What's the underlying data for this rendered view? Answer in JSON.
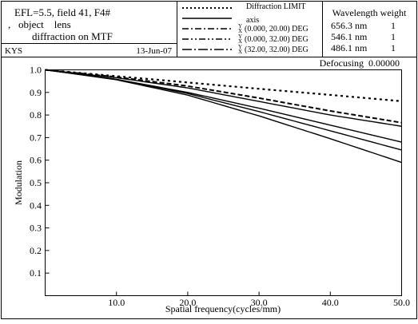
{
  "header": {
    "title_lines": [
      "EFL=5.5, field 41, F4#",
      ",   object    lens",
      "diffraction on MTF"
    ],
    "author": "KYS",
    "date": "13-Jun-07",
    "legend_entries": [
      {
        "sub": "",
        "text": "Diffraction LIMIT",
        "style": "dotted"
      },
      {
        "sub": "",
        "text": "axis",
        "style": "solid"
      },
      {
        "sub": "Y X",
        "text": "(0.000, 20.00) DEG",
        "style": "dashdot"
      },
      {
        "sub": "Y X",
        "text": "(0.000, 32.00) DEG",
        "style": "dashdotdot"
      },
      {
        "sub": "Y X",
        "text": "(32.00, 32.00) DEG",
        "style": "longdashdot"
      }
    ],
    "wavelength": {
      "title": "Wavelength weight",
      "rows": [
        {
          "wl": "656.3 nm",
          "weight": "1"
        },
        {
          "wl": "546.1 nm",
          "weight": "1"
        },
        {
          "wl": "486.1 nm",
          "weight": "1"
        }
      ]
    }
  },
  "chart_data": {
    "type": "line",
    "annotation": "Defocusing  0.00000",
    "xlabel": "Spatial frequency(cycles/mm)",
    "ylabel": "Modulation",
    "xlim": [
      0,
      50
    ],
    "ylim": [
      0,
      1.0
    ],
    "xticks": [
      10,
      20,
      30,
      40,
      50
    ],
    "xtick_labels": [
      "10.0",
      "20.0",
      "30.0",
      "40.0",
      "50.0"
    ],
    "yticks": [
      0.1,
      0.2,
      0.3,
      0.4,
      0.5,
      0.6,
      0.7,
      0.8,
      0.9,
      1.0
    ],
    "ytick_labels": [
      "0.1",
      "0.2",
      "0.3",
      "0.4",
      "0.5",
      "0.6",
      "0.7",
      "0.8",
      "0.9",
      "1.0"
    ],
    "series": [
      {
        "style": "dotted",
        "x": [
          0,
          10,
          20,
          30,
          40,
          50
        ],
        "y": [
          1.0,
          0.972,
          0.944,
          0.916,
          0.889,
          0.861
        ]
      },
      {
        "style": "solid",
        "x": [
          0,
          10,
          20,
          30,
          40,
          50
        ],
        "y": [
          1.0,
          0.965,
          0.92,
          0.86,
          0.8,
          0.75
        ]
      },
      {
        "style": "dashed",
        "x": [
          0,
          10,
          20,
          30,
          40,
          50
        ],
        "y": [
          1.0,
          0.968,
          0.928,
          0.875,
          0.818,
          0.766
        ]
      },
      {
        "style": "solid",
        "x": [
          0,
          10,
          20,
          30,
          40,
          50
        ],
        "y": [
          1.0,
          0.958,
          0.9,
          0.83,
          0.755,
          0.68
        ]
      },
      {
        "style": "solid",
        "x": [
          0,
          10,
          20,
          30,
          40,
          50
        ],
        "y": [
          1.0,
          0.958,
          0.895,
          0.815,
          0.73,
          0.645
        ]
      },
      {
        "style": "solid",
        "x": [
          0,
          10,
          20,
          30,
          40,
          50
        ],
        "y": [
          1.0,
          0.956,
          0.888,
          0.796,
          0.695,
          0.59
        ]
      }
    ]
  }
}
